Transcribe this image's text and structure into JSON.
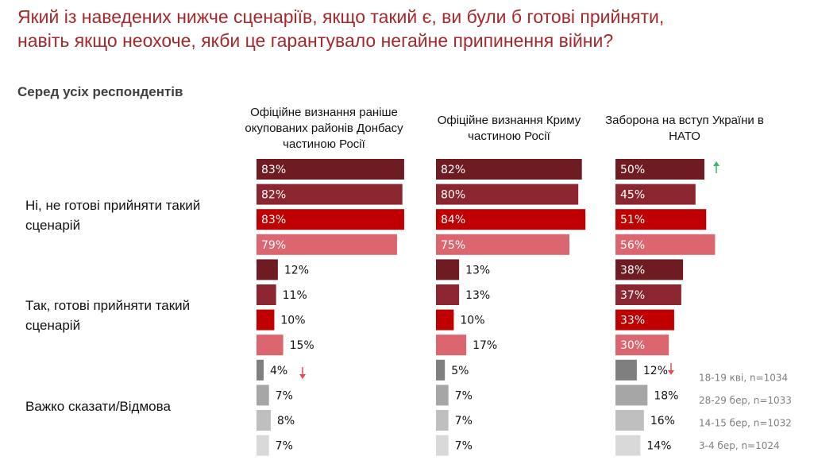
{
  "title": "Який із наведених нижче сценаріїв, якщо такий є, ви були б готові прийняти, навіть якщо неохоче, якби це гарантувало негайне припинення війни?",
  "subtitle": "Серед усіх респондентів",
  "chart_data": [
    {
      "type": "bar",
      "title": "Офіційне визнання раніше окупованих районів Донбасу частиною Росії",
      "categories": [
        "Ні, не готові прийняти такий сценарій",
        "Так, готові прийняти такий сценарій",
        "Важко сказати/Відмова"
      ],
      "xlim": [
        0,
        100
      ],
      "series": [
        {
          "color": [
            "#6e1b22",
            "#6e1b22",
            "#7f7f7f"
          ],
          "values": [
            83,
            12,
            4
          ],
          "value_labels": [
            "83%",
            "12%",
            "4%"
          ]
        },
        {
          "color": [
            "#8b2530",
            "#8b2530",
            "#a6a6a6"
          ],
          "values": [
            82,
            11,
            7
          ],
          "value_labels": [
            "82%",
            "11%",
            "7%"
          ]
        },
        {
          "color": [
            "#c00000",
            "#c00000",
            "#bfbfbf"
          ],
          "values": [
            83,
            10,
            8
          ],
          "value_labels": [
            "83%",
            "10%",
            "8%"
          ]
        },
        {
          "color": [
            "#dc6670",
            "#dc6670",
            "#d9d9d9"
          ],
          "values": [
            79,
            15,
            7
          ],
          "value_labels": [
            "79%",
            "15%",
            "7%"
          ]
        }
      ]
    },
    {
      "type": "bar",
      "title": "Офіційне визнання Криму частиною Росії",
      "xlim": [
        0,
        100
      ],
      "series": [
        {
          "color": [
            "#6e1b22",
            "#6e1b22",
            "#7f7f7f"
          ],
          "values": [
            82,
            13,
            5
          ],
          "value_labels": [
            "82%",
            "13%",
            "5%"
          ]
        },
        {
          "color": [
            "#8b2530",
            "#8b2530",
            "#a6a6a6"
          ],
          "values": [
            80,
            13,
            7
          ],
          "value_labels": [
            "80%",
            "13%",
            "7%"
          ]
        },
        {
          "color": [
            "#c00000",
            "#c00000",
            "#bfbfbf"
          ],
          "values": [
            84,
            10,
            7
          ],
          "value_labels": [
            "84%",
            "10%",
            "7%"
          ]
        },
        {
          "color": [
            "#dc6670",
            "#dc6670",
            "#d9d9d9"
          ],
          "values": [
            75,
            17,
            7
          ],
          "value_labels": [
            "75%",
            "17%",
            "7%"
          ]
        }
      ]
    },
    {
      "type": "bar",
      "title": "Заборона на вступ України в НАТО",
      "xlim": [
        0,
        100
      ],
      "series": [
        {
          "name": "18-19 кві, n=1034",
          "color": [
            "#6e1b22",
            "#6e1b22",
            "#7f7f7f"
          ],
          "values": [
            50,
            38,
            12
          ],
          "value_labels": [
            "50%",
            "38%",
            "12%"
          ]
        },
        {
          "name": "28-29 бер, n=1033",
          "color": [
            "#8b2530",
            "#8b2530",
            "#a6a6a6"
          ],
          "values": [
            45,
            37,
            18
          ],
          "value_labels": [
            "45%",
            "37%",
            "18%"
          ]
        },
        {
          "name": "14-15 бер, n=1032",
          "color": [
            "#c00000",
            "#c00000",
            "#bfbfbf"
          ],
          "values": [
            51,
            33,
            16
          ],
          "value_labels": [
            "51%",
            "33%",
            "16%"
          ]
        },
        {
          "name": "3-4 бер, n=1024",
          "color": [
            "#dc6670",
            "#dc6670",
            "#d9d9d9"
          ],
          "values": [
            56,
            30,
            14
          ],
          "value_labels": [
            "56%",
            "30%",
            "14%"
          ]
        }
      ]
    }
  ]
}
